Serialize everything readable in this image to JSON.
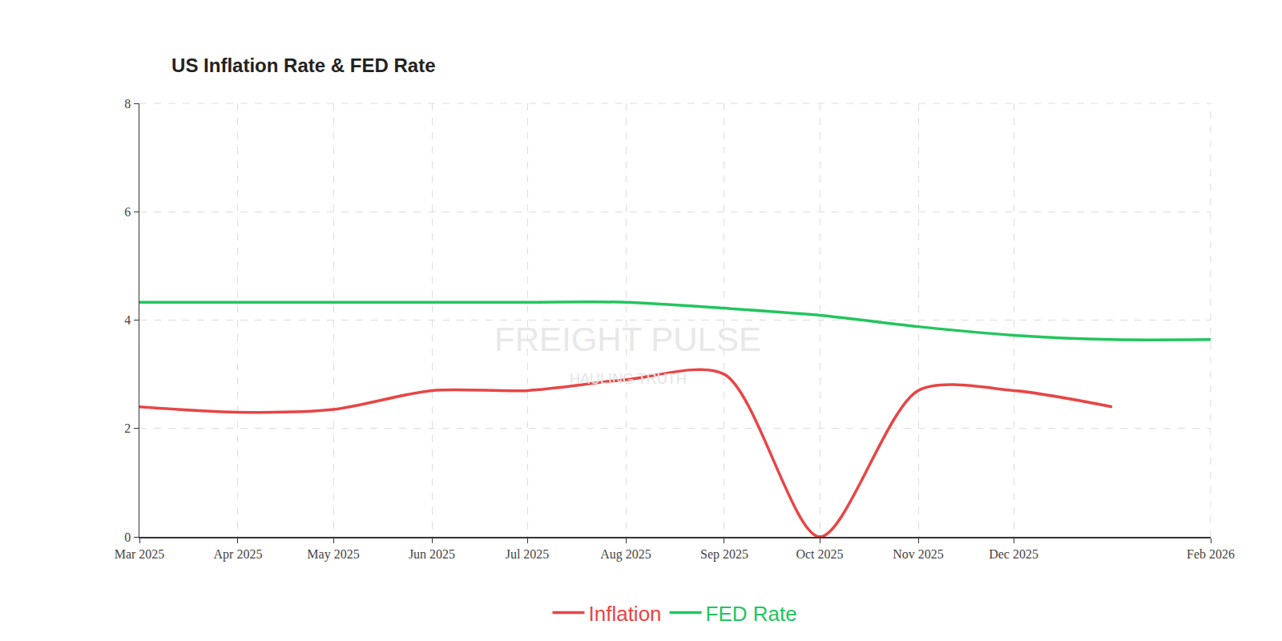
{
  "chart_data": {
    "type": "line",
    "title": "US Inflation Rate & FED Rate",
    "x": [
      "2025-03",
      "2025-04",
      "2025-05",
      "2025-06",
      "2025-07",
      "2025-08",
      "2025-09",
      "2025-10",
      "2025-11",
      "2025-12",
      "2026-01",
      "2026-02"
    ],
    "series": [
      {
        "name": "Inflation",
        "color": "#e84545",
        "values": [
          2.4,
          2.3,
          2.35,
          2.7,
          2.7,
          2.9,
          3.0,
          0,
          2.7,
          2.7,
          2.4,
          null
        ]
      },
      {
        "name": "FED Rate",
        "color": "#22c55e",
        "values": [
          4.33,
          4.33,
          4.33,
          4.33,
          4.33,
          4.33,
          4.22,
          4.09,
          3.88,
          3.72,
          3.64,
          3.64
        ]
      }
    ],
    "xlim": [
      "2025-03",
      "2026-02"
    ],
    "xticks": [
      {
        "value": "2025-03",
        "label": "Mar 2025"
      },
      {
        "value": "2025-04",
        "label": "Apr 2025"
      },
      {
        "value": "2025-05",
        "label": "May 2025"
      },
      {
        "value": "2025-06",
        "label": "Jun 2025"
      },
      {
        "value": "2025-07",
        "label": "Jul 2025"
      },
      {
        "value": "2025-08",
        "label": "Aug 2025"
      },
      {
        "value": "2025-09",
        "label": "Sep 2025"
      },
      {
        "value": "2025-10",
        "label": "Oct 2025"
      },
      {
        "value": "2025-11",
        "label": "Nov 2025"
      },
      {
        "value": "2025-12",
        "label": "Dec 2025"
      },
      {
        "value": "2026-02",
        "label": "Feb 2026"
      }
    ],
    "ylim": [
      0,
      8
    ],
    "yticks": [
      0,
      2,
      4,
      6,
      8
    ],
    "grid": true,
    "legend": "bottom",
    "annotations": [
      "FREIGHT PULSE",
      "HAULING TRUTH"
    ]
  }
}
